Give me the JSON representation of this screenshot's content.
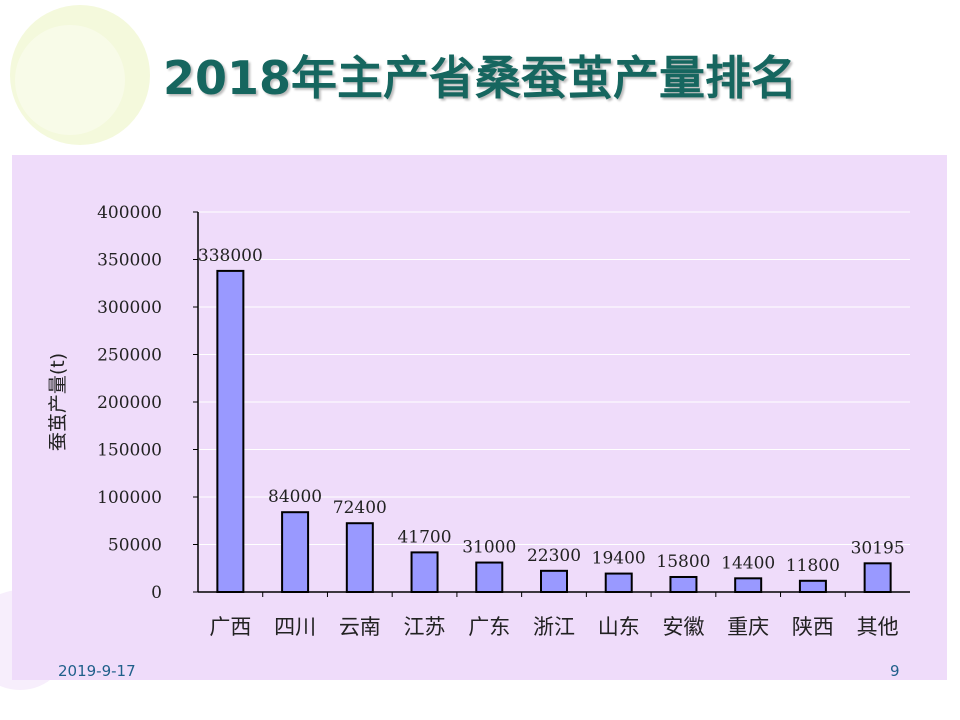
{
  "slide": {
    "title": "2018年主产省桑蚕茧产量排名",
    "date": "2019-9-17",
    "page": "9"
  },
  "colors": {
    "bar": "#9999ff",
    "panel": "#efdcfa",
    "title": "#16665f"
  },
  "chart_data": {
    "type": "bar",
    "title": "",
    "ylabel": "蚕茧产量(t)",
    "xlabel": "",
    "categories": [
      "广西",
      "四川",
      "云南",
      "江苏",
      "广东",
      "浙江",
      "山东",
      "安徽",
      "重庆",
      "陕西",
      "其他"
    ],
    "values": [
      338000,
      84000,
      72400,
      41700,
      31000,
      22300,
      19400,
      15800,
      14400,
      11800,
      30195
    ],
    "data_labels": [
      "338000",
      "84000",
      "72400",
      "41700",
      "31000",
      "22300",
      "19400",
      "15800",
      "14400",
      "11800",
      "30195"
    ],
    "ylim": [
      0,
      400000
    ],
    "yticks": [
      "0",
      "50000",
      "100000",
      "150000",
      "200000",
      "250000",
      "300000",
      "350000",
      "400000"
    ],
    "grid": true,
    "legend": "none"
  }
}
